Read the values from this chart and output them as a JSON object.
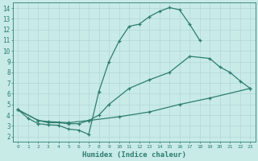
{
  "line1_x": [
    0,
    1,
    2,
    3,
    4,
    5,
    6,
    7,
    8,
    9,
    10,
    11,
    12,
    13,
    14,
    15,
    16,
    17,
    18
  ],
  "line1_y": [
    4.5,
    3.7,
    3.2,
    3.1,
    3.05,
    2.7,
    2.6,
    2.2,
    6.2,
    9.0,
    10.9,
    12.3,
    12.5,
    13.2,
    13.7,
    14.05,
    13.85,
    12.5,
    11.0
  ],
  "line2_x": [
    0,
    2,
    3,
    4,
    5,
    6,
    7,
    8,
    9,
    11,
    13,
    15,
    17,
    19,
    20,
    21,
    22,
    23
  ],
  "line2_y": [
    4.5,
    3.5,
    3.3,
    3.3,
    3.2,
    3.2,
    3.5,
    4.0,
    5.0,
    6.5,
    7.3,
    8.0,
    9.5,
    9.3,
    8.5,
    8.0,
    7.2,
    6.5
  ],
  "line3_x": [
    0,
    2,
    3,
    5,
    7,
    10,
    13,
    16,
    19,
    23
  ],
  "line3_y": [
    4.5,
    3.5,
    3.4,
    3.3,
    3.5,
    3.85,
    4.3,
    5.0,
    5.6,
    6.5
  ],
  "color": "#2e7d6e",
  "bg_color": "#c8ebe8",
  "grid_color": "#b0d8d4",
  "xlabel": "Humidex (Indice chaleur)",
  "xlim": [
    -0.5,
    23.5
  ],
  "ylim": [
    1.5,
    14.5
  ],
  "xticks": [
    0,
    1,
    2,
    3,
    4,
    5,
    6,
    7,
    8,
    9,
    10,
    11,
    12,
    13,
    14,
    15,
    16,
    17,
    18,
    19,
    20,
    21,
    22,
    23
  ],
  "yticks": [
    2,
    3,
    4,
    5,
    6,
    7,
    8,
    9,
    10,
    11,
    12,
    13,
    14
  ],
  "marker": "+",
  "linewidth": 0.9,
  "markersize": 3.5
}
